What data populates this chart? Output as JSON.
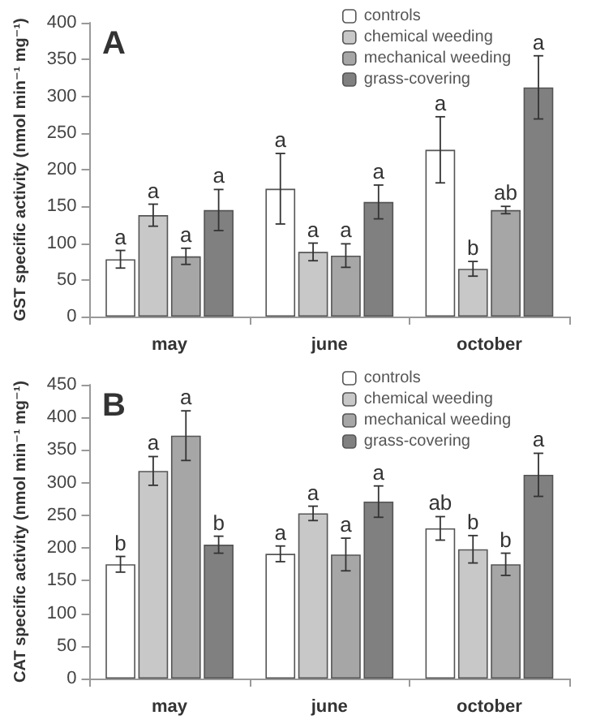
{
  "chart_data": [
    {
      "type": "bar",
      "title": "A",
      "ylabel": "GST specific activity (nmol min⁻¹ mg⁻¹)",
      "categories": [
        "may",
        "june",
        "october"
      ],
      "series": [
        {
          "name": "controls",
          "color": "#ffffff",
          "values": [
            78,
            174,
            227
          ],
          "errors": [
            12,
            48,
            45
          ],
          "value_labels": [
            "a",
            "a",
            "a"
          ]
        },
        {
          "name": "chemical weeding",
          "color": "#c8c8c8",
          "values": [
            138,
            88,
            65
          ],
          "errors": [
            15,
            12,
            10
          ],
          "value_labels": [
            "a",
            "a",
            "b"
          ]
        },
        {
          "name": "mechanical weeding",
          "color": "#a6a6a6",
          "values": [
            82,
            83,
            145
          ],
          "errors": [
            11,
            16,
            5
          ],
          "value_labels": [
            "a",
            "a",
            "ab"
          ]
        },
        {
          "name": "grass-covering",
          "color": "#808080",
          "values": [
            145,
            156,
            312
          ],
          "errors": [
            28,
            23,
            43
          ],
          "value_labels": [
            "a",
            "a",
            "a"
          ]
        }
      ],
      "ylim": [
        0,
        400
      ],
      "yticks": [
        0,
        50,
        100,
        150,
        200,
        250,
        300,
        350,
        400
      ],
      "legend": "top right"
    },
    {
      "type": "bar",
      "title": "B",
      "ylabel": "CAT specific activity (nmol min⁻¹ mg⁻¹)",
      "categories": [
        "may",
        "june",
        "october"
      ],
      "series": [
        {
          "name": "controls",
          "color": "#ffffff",
          "values": [
            175,
            191,
            230
          ],
          "errors": [
            12,
            12,
            18
          ],
          "value_labels": [
            "b",
            "a",
            "ab"
          ]
        },
        {
          "name": "chemical weeding",
          "color": "#c8c8c8",
          "values": [
            318,
            253,
            198
          ],
          "errors": [
            22,
            11,
            21
          ],
          "value_labels": [
            "a",
            "a",
            "b"
          ]
        },
        {
          "name": "mechanical weeding",
          "color": "#a6a6a6",
          "values": [
            372,
            190,
            175
          ],
          "errors": [
            38,
            25,
            17
          ],
          "value_labels": [
            "a",
            "a",
            "b"
          ]
        },
        {
          "name": "grass-covering",
          "color": "#808080",
          "values": [
            205,
            271,
            312
          ],
          "errors": [
            13,
            24,
            33
          ],
          "value_labels": [
            "b",
            "a",
            "a"
          ]
        }
      ],
      "ylim": [
        0,
        450
      ],
      "yticks": [
        0,
        50,
        100,
        150,
        200,
        250,
        300,
        350,
        400,
        450
      ],
      "legend": "top right"
    }
  ]
}
